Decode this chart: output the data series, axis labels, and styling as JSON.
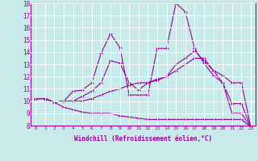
{
  "xlabel": "Windchill (Refroidissement éolien,°C)",
  "bg_color": "#c8eaea",
  "line_color": "#990099",
  "grid_color": "#ffffff",
  "xlim": [
    -0.5,
    23.5
  ],
  "ylim": [
    8,
    18
  ],
  "xticks": [
    0,
    1,
    2,
    3,
    4,
    5,
    6,
    7,
    8,
    9,
    10,
    11,
    12,
    13,
    14,
    15,
    16,
    17,
    18,
    19,
    20,
    21,
    22,
    23
  ],
  "yticks": [
    8,
    9,
    10,
    11,
    12,
    13,
    14,
    15,
    16,
    17,
    18
  ],
  "lines": [
    {
      "x": [
        0,
        1,
        2,
        3,
        4,
        5,
        6,
        7,
        8,
        9,
        10,
        11,
        12,
        13,
        14,
        15,
        16,
        17,
        18,
        19,
        20,
        21,
        22,
        23
      ],
      "y": [
        10.2,
        10.2,
        9.9,
        10.0,
        10.8,
        10.9,
        11.5,
        13.9,
        15.5,
        14.4,
        10.5,
        10.5,
        10.5,
        14.3,
        14.3,
        18.0,
        17.3,
        14.3,
        13.1,
        12.1,
        11.5,
        9.0,
        9.0,
        7.9
      ]
    },
    {
      "x": [
        0,
        1,
        2,
        3,
        4,
        5,
        6,
        7,
        8,
        9,
        10,
        11,
        12,
        13,
        14,
        15,
        16,
        17,
        18,
        19,
        20,
        21,
        22,
        23
      ],
      "y": [
        10.2,
        10.2,
        9.9,
        10.0,
        10.0,
        10.4,
        10.8,
        11.5,
        13.3,
        13.1,
        11.5,
        10.9,
        11.5,
        11.8,
        12.0,
        13.0,
        13.5,
        14.1,
        13.3,
        12.5,
        12.1,
        11.5,
        11.5,
        7.9
      ]
    },
    {
      "x": [
        0,
        1,
        2,
        3,
        4,
        5,
        6,
        7,
        8,
        9,
        10,
        11,
        12,
        13,
        14,
        15,
        16,
        17,
        18,
        19,
        20,
        21,
        22,
        23
      ],
      "y": [
        10.2,
        10.2,
        9.9,
        10.0,
        10.0,
        10.0,
        10.2,
        10.5,
        10.8,
        11.0,
        11.3,
        11.5,
        11.5,
        11.7,
        12.0,
        12.5,
        13.0,
        13.5,
        13.5,
        12.5,
        11.5,
        9.8,
        9.8,
        7.9
      ]
    },
    {
      "x": [
        0,
        1,
        2,
        3,
        4,
        5,
        6,
        7,
        8,
        9,
        10,
        11,
        12,
        13,
        14,
        15,
        16,
        17,
        18,
        19,
        20,
        21,
        22,
        23
      ],
      "y": [
        10.2,
        10.2,
        9.9,
        9.5,
        9.3,
        9.1,
        9.0,
        9.0,
        9.0,
        8.8,
        8.7,
        8.6,
        8.5,
        8.5,
        8.5,
        8.5,
        8.5,
        8.5,
        8.5,
        8.5,
        8.5,
        8.5,
        8.5,
        7.9
      ]
    }
  ]
}
